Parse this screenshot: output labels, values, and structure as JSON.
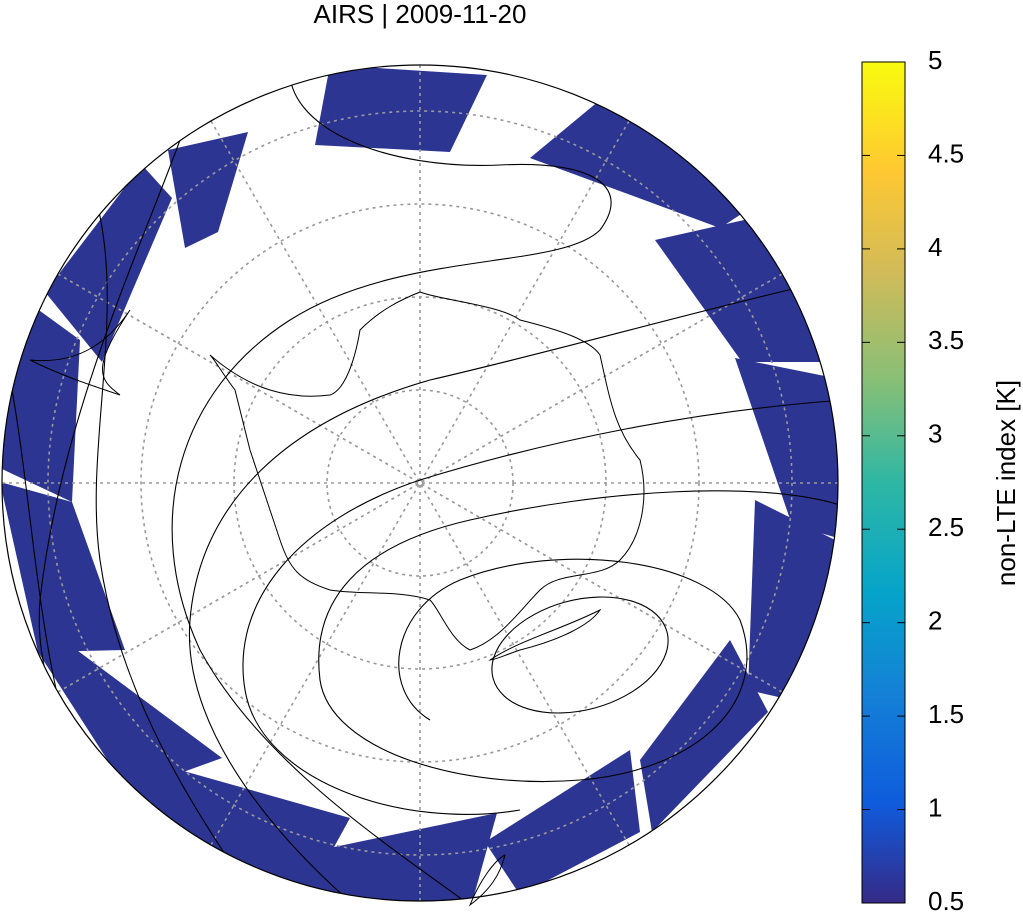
{
  "title": "AIRS | 2009-11-20",
  "colorbar": {
    "label": "non-LTE index [K]",
    "lim": [
      0.5,
      5
    ],
    "ticks": [
      0.5,
      1,
      1.5,
      2,
      2.5,
      3,
      3.5,
      4,
      4.5,
      5
    ]
  }
}
